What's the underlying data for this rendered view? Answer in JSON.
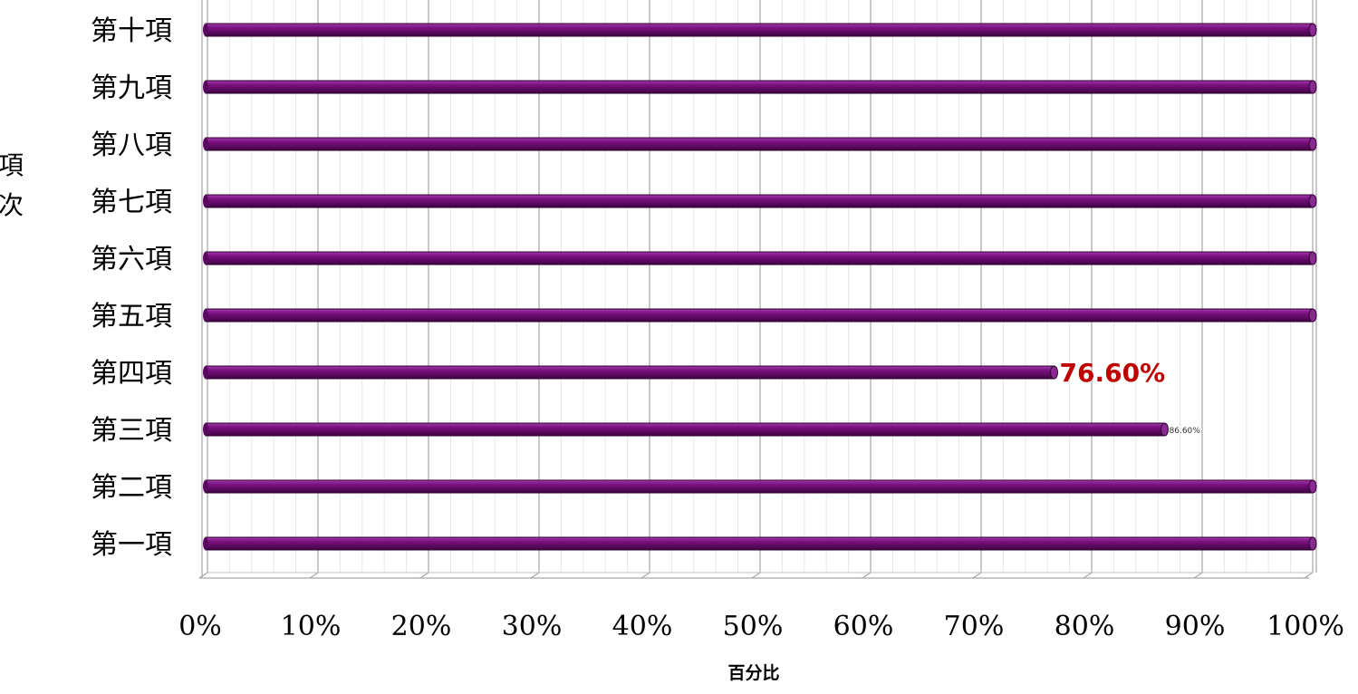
{
  "chart_data": {
    "type": "bar",
    "orientation": "horizontal",
    "categories": [
      "第一項",
      "第二項",
      "第三項",
      "第四項",
      "第五項",
      "第六項",
      "第七項",
      "第八項",
      "第九項",
      "第十項"
    ],
    "values": [
      100,
      100,
      86.6,
      76.6,
      100,
      100,
      100,
      100,
      100,
      100
    ],
    "data_labels": [
      "",
      "",
      "86.60%",
      "76.60%",
      "",
      "",
      "",
      "",
      "",
      ""
    ],
    "xlabel": "百分比",
    "ylabel_lines": [
      "項",
      "次"
    ],
    "xlim": [
      0,
      100
    ],
    "ticks": [
      0,
      10,
      20,
      30,
      40,
      50,
      60,
      70,
      80,
      90,
      100
    ],
    "tick_labels": [
      "0%",
      "10%",
      "20%",
      "30%",
      "40%",
      "50%",
      "60%",
      "70%",
      "80%",
      "90%",
      "100%"
    ],
    "grid": true,
    "bar_color": "#6a0a6f",
    "highlight_label_color": "#c00000"
  }
}
